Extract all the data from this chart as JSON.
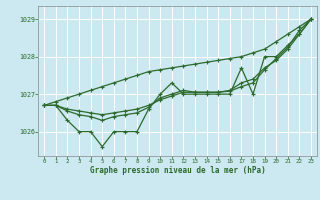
{
  "title": "Graphe pression niveau de la mer (hPa)",
  "background_color": "#cce8f0",
  "grid_color": "#ffffff",
  "line_color": "#2d6a2d",
  "xlim": [
    -0.5,
    23.5
  ],
  "ylim": [
    1025.35,
    1029.35
  ],
  "yticks": [
    1026,
    1027,
    1028,
    1029
  ],
  "xticks": [
    0,
    1,
    2,
    3,
    4,
    5,
    6,
    7,
    8,
    9,
    10,
    11,
    12,
    13,
    14,
    15,
    16,
    17,
    18,
    19,
    20,
    21,
    22,
    23
  ],
  "x": [
    0,
    1,
    2,
    3,
    4,
    5,
    6,
    7,
    8,
    9,
    10,
    11,
    12,
    13,
    14,
    15,
    16,
    17,
    18,
    19,
    20,
    21,
    22,
    23
  ],
  "y_detailed": [
    1026.7,
    1026.7,
    1026.3,
    1026.0,
    1026.0,
    1025.6,
    1026.0,
    1026.0,
    1026.0,
    1026.6,
    1027.0,
    1027.3,
    1027.0,
    1027.0,
    1027.0,
    1027.0,
    1027.0,
    1027.7,
    1027.0,
    1028.0,
    1028.0,
    1028.3,
    1028.6,
    1029.0
  ],
  "y_linear": [
    1026.7,
    1026.8,
    1026.9,
    1027.0,
    1027.1,
    1027.2,
    1027.3,
    1027.4,
    1027.5,
    1027.6,
    1027.65,
    1027.7,
    1027.75,
    1027.8,
    1027.85,
    1027.9,
    1027.95,
    1028.0,
    1028.1,
    1028.2,
    1028.4,
    1028.6,
    1028.8,
    1029.0
  ],
  "y_smooth1": [
    1026.7,
    1026.7,
    1026.6,
    1026.55,
    1026.5,
    1026.45,
    1026.5,
    1026.55,
    1026.6,
    1026.7,
    1026.85,
    1026.95,
    1027.05,
    1027.05,
    1027.05,
    1027.05,
    1027.1,
    1027.3,
    1027.4,
    1027.7,
    1027.9,
    1028.2,
    1028.6,
    1029.0
  ],
  "y_smooth2": [
    1026.7,
    1026.7,
    1026.55,
    1026.45,
    1026.4,
    1026.3,
    1026.4,
    1026.45,
    1026.5,
    1026.65,
    1026.9,
    1027.0,
    1027.1,
    1027.05,
    1027.05,
    1027.05,
    1027.08,
    1027.2,
    1027.3,
    1027.65,
    1027.95,
    1028.25,
    1028.7,
    1029.0
  ]
}
